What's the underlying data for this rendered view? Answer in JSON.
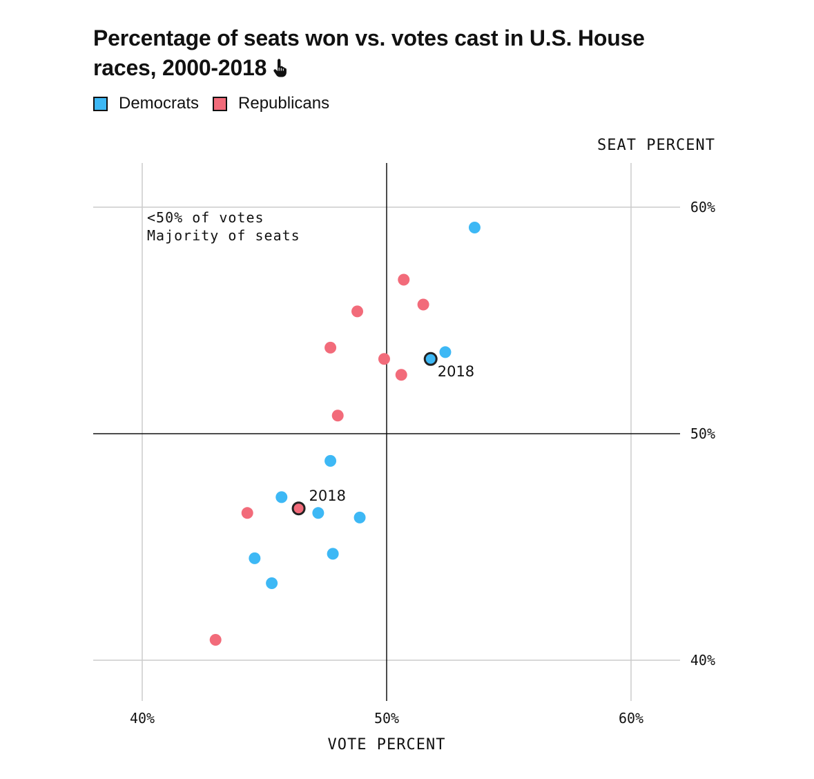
{
  "title": "Percentage of seats won vs. votes cast in U.S. House races, 2000-2018",
  "icons": {
    "title_icon": "pointer-hand-icon"
  },
  "legend": [
    {
      "label": "Democrats",
      "color": "#3DB8F5"
    },
    {
      "label": "Republicans",
      "color": "#F26B7A"
    }
  ],
  "chart_data": {
    "type": "scatter",
    "title": "Percentage of seats won vs. votes cast in U.S. House races, 2000-2018",
    "xlabel": "VOTE PERCENT",
    "ylabel": "SEAT PERCENT",
    "xlim": [
      38,
      62
    ],
    "ylim": [
      38,
      62
    ],
    "x_ticks": [
      {
        "value": 40,
        "label": "40%"
      },
      {
        "value": 50,
        "label": "50%"
      },
      {
        "value": 60,
        "label": "60%"
      }
    ],
    "y_ticks": [
      {
        "value": 40,
        "label": "40%"
      },
      {
        "value": 50,
        "label": "50%"
      },
      {
        "value": 60,
        "label": "60%"
      }
    ],
    "quadrant_annotation": [
      "<50% of votes",
      "Majority of seats"
    ],
    "grid": true,
    "legend_position": "top-left",
    "series": [
      {
        "name": "Democrats",
        "color": "#3DB8F5",
        "points": [
          {
            "x": 53.6,
            "y": 59.1
          },
          {
            "x": 52.4,
            "y": 53.6
          },
          {
            "x": 51.8,
            "y": 53.3,
            "label": "2018"
          },
          {
            "x": 47.7,
            "y": 48.8
          },
          {
            "x": 45.7,
            "y": 47.2
          },
          {
            "x": 47.2,
            "y": 46.5
          },
          {
            "x": 48.9,
            "y": 46.3
          },
          {
            "x": 47.8,
            "y": 44.7
          },
          {
            "x": 44.6,
            "y": 44.5
          },
          {
            "x": 45.3,
            "y": 43.4
          }
        ]
      },
      {
        "name": "Republicans",
        "color": "#F26B7A",
        "points": [
          {
            "x": 50.7,
            "y": 56.8
          },
          {
            "x": 51.5,
            "y": 55.7
          },
          {
            "x": 48.8,
            "y": 55.4
          },
          {
            "x": 47.7,
            "y": 53.8
          },
          {
            "x": 49.9,
            "y": 53.3
          },
          {
            "x": 50.6,
            "y": 52.6
          },
          {
            "x": 48.0,
            "y": 50.8
          },
          {
            "x": 44.3,
            "y": 46.5
          },
          {
            "x": 46.4,
            "y": 46.7,
            "label": "2018"
          },
          {
            "x": 43.0,
            "y": 40.9
          }
        ]
      }
    ]
  }
}
